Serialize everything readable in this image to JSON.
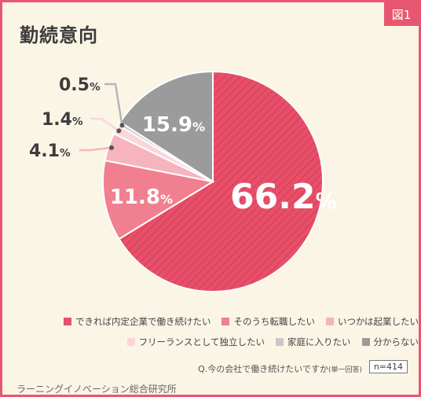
{
  "figure_label": "図1",
  "chart_data": {
    "type": "pie",
    "title": "勤続意向",
    "slices": [
      {
        "label": "できれば内定企業で働き続けたい",
        "value": 66.2,
        "color": "#e8506a",
        "hatched": true
      },
      {
        "label": "そのうち転職したい",
        "value": 11.8,
        "color": "#f07f90"
      },
      {
        "label": "いつかは起業したい",
        "value": 4.1,
        "color": "#f6b4be"
      },
      {
        "label": "フリーランスとして独立したい",
        "value": 1.4,
        "color": "#fad6db"
      },
      {
        "label": "家庭に入りたい",
        "value": 0.5,
        "color": "#c8c8c8"
      },
      {
        "label": "分からない",
        "value": 15.9,
        "color": "#9b9b9b"
      }
    ],
    "value_labels": [
      "66.2%",
      "11.8%",
      "4.1%",
      "1.4%",
      "0.5%",
      "15.9%"
    ],
    "legend_position": "bottom"
  },
  "question": "Q.今の会社で働き続けたいですか",
  "question_note": "(単一回答)",
  "n_label": "n=414",
  "footer": "ラーニングイノベーション総合研究所"
}
